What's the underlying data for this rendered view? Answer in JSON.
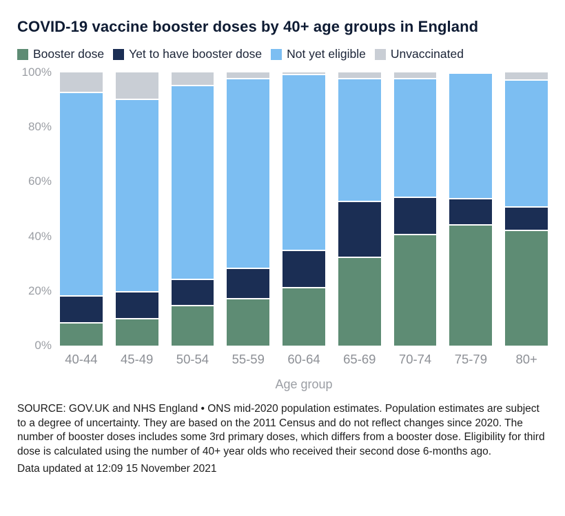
{
  "title": "COVID-19 vaccine booster doses by 40+ age groups in England",
  "chart_data": {
    "type": "bar",
    "stacked": true,
    "title": "COVID-19 vaccine booster doses by 40+ age groups in England",
    "xlabel": "Age group",
    "ylabel": "",
    "ylim": [
      0,
      100
    ],
    "yticks": [
      100,
      80,
      60,
      40,
      20,
      0
    ],
    "ytick_suffix": "%",
    "grid": false,
    "legend_position": "top",
    "categories": [
      "40-44",
      "45-49",
      "50-54",
      "55-59",
      "60-64",
      "65-69",
      "70-74",
      "75-79",
      "80+"
    ],
    "series": [
      {
        "name": "Booster dose",
        "color": "#5e8c74",
        "values": [
          8,
          9.5,
          14.5,
          17,
          21,
          32,
          40.5,
          44,
          42
        ]
      },
      {
        "name": "Yet to have booster dose",
        "color": "#1b2e54",
        "values": [
          10,
          10,
          9.5,
          11,
          13.5,
          20.5,
          13.5,
          9.5,
          8.5
        ]
      },
      {
        "name": "Not yet eligible",
        "color": "#7cbef2",
        "values": [
          74.5,
          70.5,
          71,
          69.5,
          64.5,
          45,
          43.5,
          46,
          46.5
        ]
      },
      {
        "name": "Unvaccinated",
        "color": "#c9ced5",
        "values": [
          7.5,
          10,
          5,
          2.5,
          1,
          2.5,
          2.5,
          0.5,
          3
        ]
      }
    ]
  },
  "footer": {
    "source": "SOURCE: GOV.UK and NHS England • ONS mid-2020 population estimates. Population estimates are subject to a degree of uncertainty. They are based on the 2011 Census and do not reflect changes since 2020. The number of booster doses includes some 3rd primary doses, which differs from a booster dose. Eligibility for third dose is calculated using the number of 40+ year olds who received their second dose 6-months ago.",
    "updated": "Data updated at 12:09 15 November 2021"
  }
}
